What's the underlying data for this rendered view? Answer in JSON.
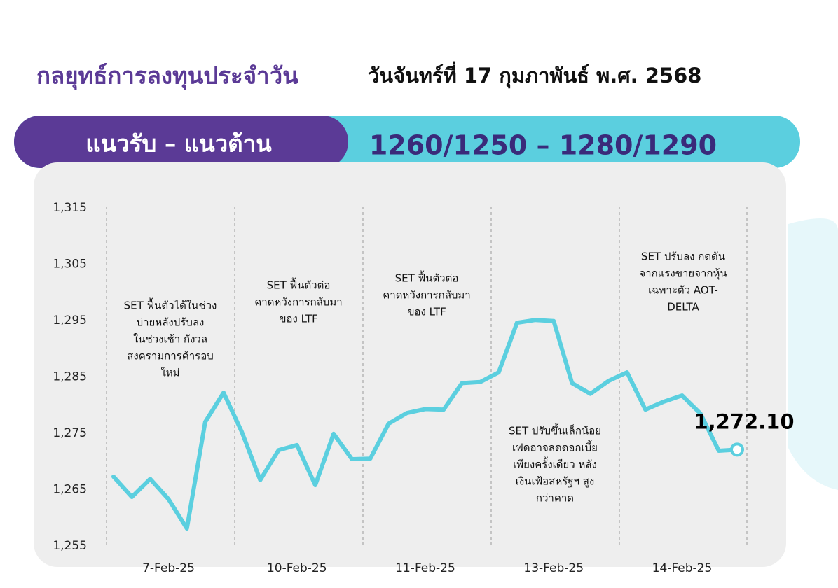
{
  "header": {
    "title": "กลยุทธ์การลงทุนประจำวัน",
    "date": "วันจันทร์ที่ 17 กุมภาพันธ์ พ.ศ. 2568"
  },
  "banner": {
    "label": "แนวรับ – แนวต้าน",
    "levels": "1260/1250 – 1280/1290"
  },
  "chart_data": {
    "type": "line",
    "categories": [
      null,
      null,
      null,
      "7-Feb-25",
      null,
      null,
      null,
      null,
      null,
      null,
      "10-Feb-25",
      null,
      null,
      null,
      null,
      null,
      null,
      "11-Feb-25",
      null,
      null,
      null,
      null,
      null,
      null,
      "13-Feb-25",
      null,
      null,
      null,
      null,
      null,
      null,
      "14-Feb-25",
      null,
      null,
      null
    ],
    "series": [
      {
        "color": "#5bcfdf",
        "values": [
          1267.3,
          1263.7,
          1266.9,
          1263.3,
          1258.1,
          1277.0,
          1282.2,
          1275.2,
          1266.7,
          1272.0,
          1272.9,
          1265.8,
          1274.9,
          1270.4,
          1270.5,
          1276.7,
          1278.6,
          1279.3,
          1279.2,
          1283.9,
          1284.1,
          1285.8,
          1294.6,
          1295.1,
          1294.9,
          1283.9,
          1282.0,
          1284.3,
          1285.8,
          1279.2,
          1280.6,
          1281.7,
          1278.5,
          1271.9,
          1272.1
        ],
        "value_labels": [
          null,
          null,
          null,
          null,
          null,
          null,
          null,
          null,
          null,
          null,
          null,
          null,
          null,
          null,
          null,
          null,
          null,
          null,
          null,
          null,
          null,
          null,
          null,
          null,
          null,
          null,
          null,
          null,
          null,
          null,
          null,
          null,
          null,
          null,
          "1,272.10"
        ]
      }
    ],
    "ylim": [
      1255,
      1315
    ],
    "yticks": [
      {
        "value": 1255,
        "label": "1,255"
      },
      {
        "value": 1265,
        "label": "1,265"
      },
      {
        "value": 1275,
        "label": "1,275"
      },
      {
        "value": 1285,
        "label": "1,285"
      },
      {
        "value": 1295,
        "label": "1,295"
      },
      {
        "value": 1305,
        "label": "1,305"
      },
      {
        "value": 1315,
        "label": "1,315"
      }
    ],
    "annotations": [
      {
        "lines": [
          "SET ฟื้นตัวได้ในช่วง",
          "บ่ายหลังปรับลง",
          "ในช่วงเช้า กังวล",
          "สงครามการค้ารอบ",
          "ใหม่"
        ]
      },
      {
        "lines": [
          "SET ฟื้นตัวต่อ",
          "คาดหวังการกลับมา",
          "ของ LTF"
        ]
      },
      {
        "lines": [
          "SET ฟื้นตัวต่อ",
          "คาดหวังการกลับมา",
          "ของ LTF"
        ]
      },
      {
        "lines": [
          "SET ปรับขึ้นเล็กน้อย",
          "เฟดอาจลดดอกเบี้ย",
          "เพียงครั้งเดียว หลัง",
          "เงินเฟ้อสหรัฐฯ สูง",
          "กว่าคาด"
        ]
      },
      {
        "lines": [
          "SET ปรับลง กดดัน",
          "จากแรงขายจากหุ้น",
          "เฉพาะตัว AOT-",
          "DELTA"
        ]
      }
    ]
  }
}
